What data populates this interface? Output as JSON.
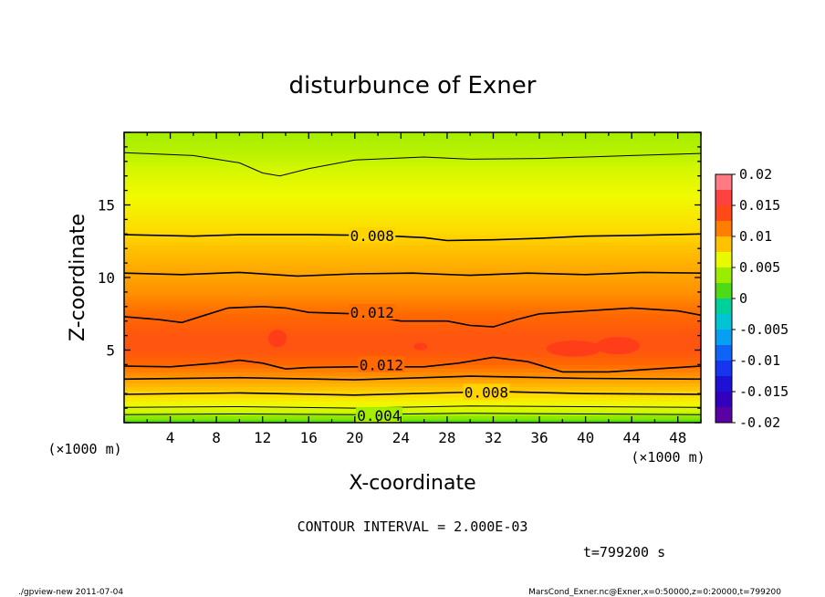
{
  "chart_data": {
    "type": "heatmap",
    "title": "disturbunce of Exner",
    "xlabel": "X-coordinate",
    "ylabel": "Z-coordinate",
    "x_unit": "(×1000 m)",
    "y_unit": "(×1000 m)",
    "xlim": [
      0,
      50
    ],
    "ylim": [
      0,
      20
    ],
    "x_ticks": [
      4,
      8,
      12,
      16,
      20,
      24,
      28,
      32,
      36,
      40,
      44,
      48
    ],
    "y_ticks": [
      5,
      10,
      15
    ],
    "contour_interval_text": "CONTOUR INTERVAL = 2.000E-03",
    "time_text": "t=799200 s",
    "colorbar": {
      "ticks": [
        "0.02",
        "0.015",
        "0.01",
        "0.005",
        "0",
        "-0.005",
        "-0.01",
        "-0.015",
        "-0.02"
      ],
      "min": -0.02,
      "max": 0.02
    },
    "contour_labels": [
      {
        "text": "0.008",
        "x": 21.5,
        "y": 12.9
      },
      {
        "text": "0.012",
        "x": 21.5,
        "y": 7.6
      },
      {
        "text": "0.012",
        "x": 22.3,
        "y": 4.0
      },
      {
        "text": "0.008",
        "x": 31.4,
        "y": 2.1
      },
      {
        "text": "0.004",
        "x": 22.1,
        "y": 0.5
      }
    ],
    "profile": [
      {
        "z": 0.0,
        "value": 0.001
      },
      {
        "z": 0.5,
        "value": 0.004
      },
      {
        "z": 1.0,
        "value": 0.006
      },
      {
        "z": 2.0,
        "value": 0.008
      },
      {
        "z": 3.0,
        "value": 0.01
      },
      {
        "z": 4.0,
        "value": 0.012
      },
      {
        "z": 5.0,
        "value": 0.0132
      },
      {
        "z": 6.0,
        "value": 0.0132
      },
      {
        "z": 7.5,
        "value": 0.012
      },
      {
        "z": 9.0,
        "value": 0.0105
      },
      {
        "z": 10.5,
        "value": 0.0097
      },
      {
        "z": 12.0,
        "value": 0.0088
      },
      {
        "z": 13.0,
        "value": 0.008
      },
      {
        "z": 15.0,
        "value": 0.0068
      },
      {
        "z": 17.0,
        "value": 0.0058
      },
      {
        "z": 18.5,
        "value": 0.0046
      },
      {
        "z": 20.0,
        "value": 0.004
      }
    ],
    "contours": [
      {
        "level": 0.004,
        "points": [
          [
            0,
            0.55
          ],
          [
            10,
            0.6
          ],
          [
            20,
            0.55
          ],
          [
            30,
            0.65
          ],
          [
            40,
            0.6
          ],
          [
            50,
            0.55
          ]
        ]
      },
      {
        "level": 0.006,
        "points": [
          [
            0,
            1.05
          ],
          [
            10,
            1.1
          ],
          [
            20,
            1.0
          ],
          [
            30,
            1.15
          ],
          [
            40,
            1.1
          ],
          [
            50,
            1.05
          ]
        ]
      },
      {
        "level": 0.008,
        "points": [
          [
            0,
            1.95
          ],
          [
            10,
            2.05
          ],
          [
            20,
            1.9
          ],
          [
            30,
            2.1
          ],
          [
            32,
            2.15
          ],
          [
            40,
            2.0
          ],
          [
            50,
            1.95
          ]
        ]
      },
      {
        "level": 0.01,
        "points": [
          [
            0,
            3.0
          ],
          [
            10,
            3.1
          ],
          [
            20,
            2.95
          ],
          [
            30,
            3.2
          ],
          [
            40,
            3.05
          ],
          [
            50,
            3.0
          ]
        ]
      },
      {
        "level": 0.012,
        "points": [
          [
            0,
            3.9
          ],
          [
            4,
            3.85
          ],
          [
            8,
            4.1
          ],
          [
            10,
            4.3
          ],
          [
            12,
            4.1
          ],
          [
            14,
            3.7
          ],
          [
            16,
            3.8
          ],
          [
            20,
            3.85
          ],
          [
            26,
            3.85
          ],
          [
            29,
            4.1
          ],
          [
            32,
            4.5
          ],
          [
            35,
            4.2
          ],
          [
            38,
            3.5
          ],
          [
            42,
            3.5
          ],
          [
            46,
            3.7
          ],
          [
            50,
            3.9
          ]
        ]
      },
      {
        "level": 0.012,
        "points": [
          [
            0,
            7.3
          ],
          [
            3,
            7.1
          ],
          [
            5,
            6.9
          ],
          [
            7,
            7.4
          ],
          [
            9,
            7.9
          ],
          [
            12,
            8.0
          ],
          [
            14,
            7.9
          ],
          [
            16,
            7.6
          ],
          [
            20,
            7.5
          ],
          [
            24,
            7.0
          ],
          [
            28,
            7.0
          ],
          [
            30,
            6.7
          ],
          [
            32,
            6.6
          ],
          [
            34,
            7.1
          ],
          [
            36,
            7.5
          ],
          [
            40,
            7.7
          ],
          [
            44,
            7.9
          ],
          [
            48,
            7.7
          ],
          [
            50,
            7.4
          ]
        ]
      },
      {
        "level": 0.01,
        "points": [
          [
            0,
            10.3
          ],
          [
            5,
            10.2
          ],
          [
            10,
            10.35
          ],
          [
            15,
            10.1
          ],
          [
            20,
            10.25
          ],
          [
            25,
            10.3
          ],
          [
            30,
            10.15
          ],
          [
            35,
            10.3
          ],
          [
            40,
            10.2
          ],
          [
            45,
            10.35
          ],
          [
            50,
            10.3
          ]
        ]
      },
      {
        "level": 0.008,
        "points": [
          [
            0,
            12.95
          ],
          [
            6,
            12.85
          ],
          [
            10,
            12.95
          ],
          [
            16,
            12.95
          ],
          [
            22,
            12.9
          ],
          [
            26,
            12.75
          ],
          [
            28,
            12.55
          ],
          [
            32,
            12.6
          ],
          [
            36,
            12.7
          ],
          [
            40,
            12.85
          ],
          [
            44,
            12.9
          ],
          [
            50,
            13.0
          ]
        ]
      },
      {
        "level": 0.006,
        "points": [
          [
            0,
            18.6
          ],
          [
            6,
            18.4
          ],
          [
            10,
            17.9
          ],
          [
            12,
            17.2
          ],
          [
            13.5,
            17.0
          ],
          [
            16,
            17.5
          ],
          [
            20,
            18.1
          ],
          [
            26,
            18.3
          ],
          [
            30,
            18.15
          ],
          [
            36,
            18.2
          ],
          [
            44,
            18.4
          ],
          [
            50,
            18.55
          ]
        ]
      }
    ],
    "blobs": [
      {
        "x": 13.3,
        "z": 5.8,
        "rx": 0.8,
        "rz": 0.6
      },
      {
        "x": 25.7,
        "z": 5.25,
        "rx": 0.6,
        "rz": 0.25
      },
      {
        "x": 39.0,
        "z": 5.1,
        "rx": 2.4,
        "rz": 0.55
      },
      {
        "x": 42.8,
        "z": 5.3,
        "rx": 1.9,
        "rz": 0.6
      }
    ]
  },
  "footer": {
    "left": "./gpview-new  2011-07-04",
    "right": "MarsCond_Exner.nc@Exner,x=0:50000,z=0:20000,t=799200"
  }
}
